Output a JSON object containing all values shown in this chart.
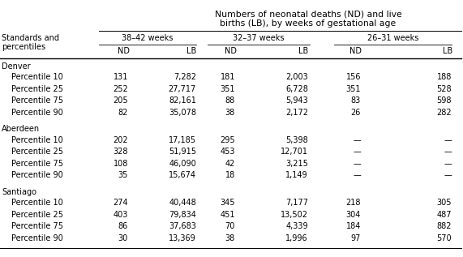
{
  "title_line1": "Numbers of neonatal deaths (ND) and live",
  "title_line2": "births (LB), by weeks of gestational age",
  "col_group_labels": [
    "38–42 weeks",
    "32–37 weeks",
    "26–31 weeks"
  ],
  "row_header_label1": "Standards and",
  "row_header_label2": "percentiles",
  "groups": [
    {
      "name": "Denver",
      "rows": [
        {
          "label": "Percentile 10",
          "vals": [
            "131",
            "7,282",
            "181",
            "2,003",
            "156",
            "188"
          ]
        },
        {
          "label": "Percentile 25",
          "vals": [
            "252",
            "27,717",
            "351",
            "6,728",
            "351",
            "528"
          ]
        },
        {
          "label": "Percentile 75",
          "vals": [
            "205",
            "82,161",
            "88",
            "5,943",
            "83",
            "598"
          ]
        },
        {
          "label": "Percentile 90",
          "vals": [
            "82",
            "35,078",
            "38",
            "2,172",
            "26",
            "282"
          ]
        }
      ]
    },
    {
      "name": "Aberdeen",
      "rows": [
        {
          "label": "Percentile 10",
          "vals": [
            "202",
            "17,185",
            "295",
            "5,398",
            "—",
            "—"
          ]
        },
        {
          "label": "Percentile 25",
          "vals": [
            "328",
            "51,915",
            "453",
            "12,701",
            "—",
            "—"
          ]
        },
        {
          "label": "Percentile 75",
          "vals": [
            "108",
            "46,090",
            "42",
            "3,215",
            "—",
            "—"
          ]
        },
        {
          "label": "Percentile 90",
          "vals": [
            "35",
            "15,674",
            "18",
            "1,149",
            "—",
            "—"
          ]
        }
      ]
    },
    {
      "name": "Santiago",
      "rows": [
        {
          "label": "Percentile 10",
          "vals": [
            "274",
            "40,448",
            "345",
            "7,177",
            "218",
            "305"
          ]
        },
        {
          "label": "Percentile 25",
          "vals": [
            "403",
            "79,834",
            "451",
            "13,502",
            "304",
            "487"
          ]
        },
        {
          "label": "Percentile 75",
          "vals": [
            "86",
            "37,683",
            "70",
            "4,339",
            "184",
            "882"
          ]
        },
        {
          "label": "Percentile 90",
          "vals": [
            "30",
            "13,369",
            "38",
            "1,996",
            "97",
            "570"
          ]
        }
      ]
    }
  ],
  "bg_color": "#ffffff",
  "text_color": "#000000",
  "font_size": 7.0,
  "title_font_size": 7.8,
  "fig_width": 5.71,
  "fig_height": 3.17,
  "dpi": 100
}
